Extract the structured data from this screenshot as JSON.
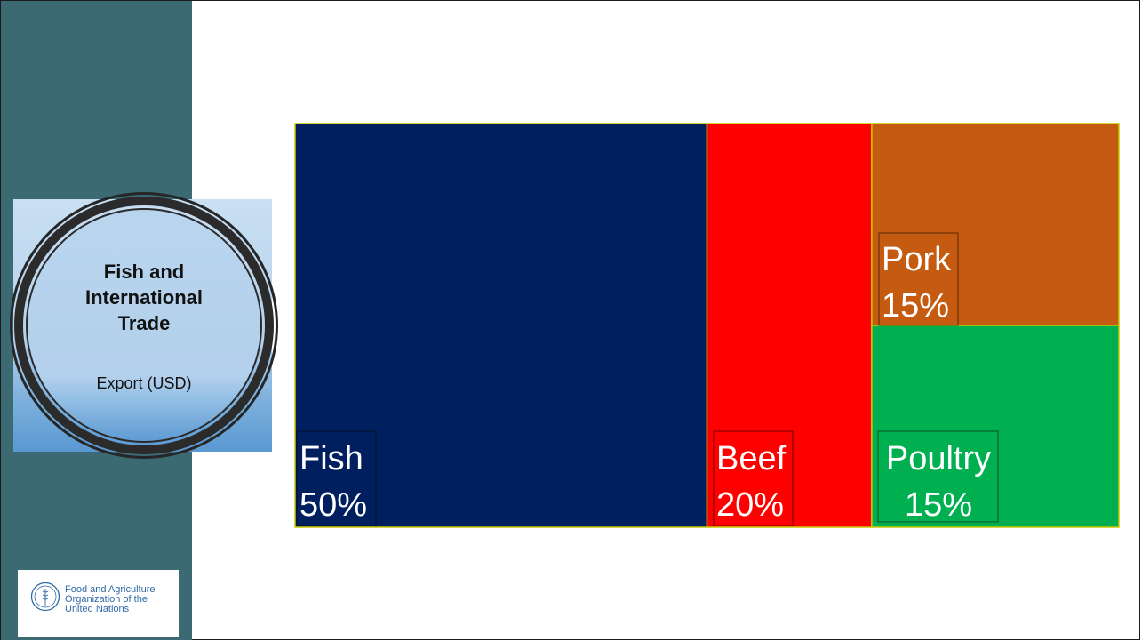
{
  "slide": {
    "badge": {
      "title_lines": [
        "Fish and",
        "International",
        "Trade"
      ],
      "subtitle": "Export (USD)"
    },
    "logo": {
      "text_lines": [
        "Food and Agriculture",
        "Organization of the",
        "United Nations"
      ],
      "emblem_letters": "FAO",
      "emblem_icon": "fao-emblem-icon"
    }
  },
  "chart_data": {
    "type": "treemap",
    "unit": "%",
    "items": [
      {
        "name": "Fish",
        "value": 50,
        "label": "Fish",
        "value_label": "50%",
        "color": "#001f5e"
      },
      {
        "name": "Beef",
        "value": 20,
        "label": "Beef",
        "value_label": "20%",
        "color": "#ff0000"
      },
      {
        "name": "Pork",
        "value": 15,
        "label": "Pork",
        "value_label": "15%",
        "color": "#c55a11"
      },
      {
        "name": "Poultry",
        "value": 15,
        "label": "Poultry",
        "value_label": "15%",
        "color": "#00b050"
      }
    ],
    "border_color": "#c8c800"
  }
}
